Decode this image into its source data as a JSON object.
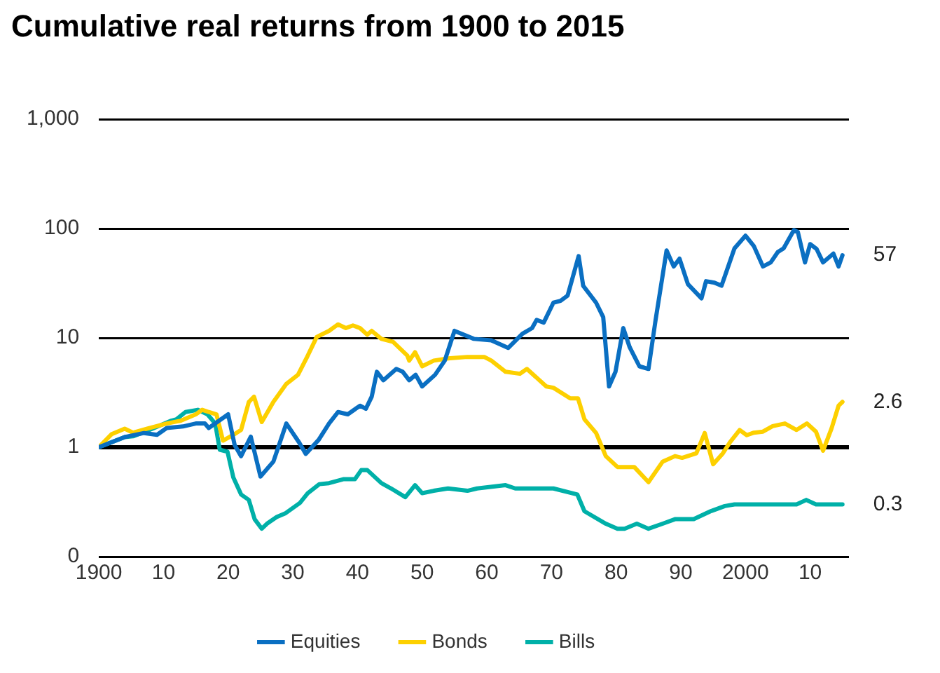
{
  "chart_data": {
    "type": "line",
    "title": "Cumulative real returns from 1900 to 2015",
    "log": "y",
    "grid": "y",
    "legend": "bottom",
    "marker": "none",
    "line_style": "solid",
    "xlim": [
      1900,
      2016
    ],
    "xticks": [
      {
        "value": 1900,
        "label": "1900"
      },
      {
        "value": 1910,
        "label": "10"
      },
      {
        "value": 1920,
        "label": "20"
      },
      {
        "value": 1930,
        "label": "30"
      },
      {
        "value": 1940,
        "label": "40"
      },
      {
        "value": 1950,
        "label": "50"
      },
      {
        "value": 1960,
        "label": "60"
      },
      {
        "value": 1970,
        "label": "70"
      },
      {
        "value": 1980,
        "label": "80"
      },
      {
        "value": 1990,
        "label": "90"
      },
      {
        "value": 2000,
        "label": "2000"
      },
      {
        "value": 2010,
        "label": "10"
      }
    ],
    "ylim": [
      0.1,
      1000
    ],
    "yticks": [
      {
        "value": 0.1,
        "label": "0"
      },
      {
        "value": 1,
        "label": "1"
      },
      {
        "value": 10,
        "label": "10"
      },
      {
        "value": 100,
        "label": "100"
      },
      {
        "value": 1000,
        "label": "1,000"
      }
    ],
    "ref_lines": [
      {
        "axis": "y",
        "value": 1,
        "color": "#000000"
      }
    ],
    "series": [
      {
        "name": "Equities",
        "color": "#0a6fc2",
        "x": [
          1900,
          1904,
          1907,
          1909,
          1910.5,
          1913,
          1915,
          1916.4,
          1917,
          1918,
          1920,
          1921,
          1922,
          1923.5,
          1925,
          1927,
          1929,
          1931,
          1932,
          1934,
          1935.6,
          1937,
          1938.5,
          1940.4,
          1941.3,
          1942.2,
          1943,
          1944,
          1946,
          1947,
          1948,
          1949,
          1950,
          1952,
          1953.5,
          1955,
          1958,
          1960.7,
          1963.3,
          1965.5,
          1967,
          1967.7,
          1968.8,
          1970.3,
          1971.4,
          1972.5,
          1974.2,
          1974.9,
          1976.9,
          1978,
          1978.9,
          1979.9,
          1981.1,
          1982.1,
          1983.6,
          1985,
          1986.1,
          1987.8,
          1988.9,
          1989.8,
          1991.1,
          1993.2,
          1993.9,
          1995.2,
          1996.3,
          1998.3,
          2000,
          2001.3,
          2002.7,
          2003.9,
          2005,
          2005.9,
          2007.5,
          2008.1,
          2009.2,
          2010,
          2011,
          2012,
          2013.6,
          2014.4,
          2015
        ],
        "values": [
          1,
          1.24,
          1.35,
          1.3,
          1.5,
          1.55,
          1.65,
          1.65,
          1.5,
          1.65,
          2,
          1.05,
          0.83,
          1.25,
          0.54,
          0.74,
          1.65,
          1.1,
          0.87,
          1.17,
          1.65,
          2.1,
          2,
          2.4,
          2.25,
          2.9,
          4.9,
          4.1,
          5.2,
          4.9,
          4.1,
          4.6,
          3.6,
          4.6,
          6.2,
          11.6,
          9.8,
          9.5,
          8.1,
          10.9,
          12.3,
          14.6,
          13.8,
          21,
          21.8,
          24.4,
          56,
          30,
          21,
          15.5,
          3.6,
          4.9,
          12.3,
          8.2,
          5.5,
          5.2,
          14.6,
          63,
          45,
          53,
          31,
          23,
          33,
          32,
          30,
          66,
          86,
          69,
          45,
          49,
          61,
          66,
          97,
          93,
          49,
          72,
          65,
          49,
          59,
          45,
          57
        ],
        "value_labels": [
          null,
          null,
          null,
          null,
          null,
          null,
          null,
          null,
          null,
          null,
          null,
          null,
          null,
          null,
          null,
          null,
          null,
          null,
          null,
          null,
          null,
          null,
          null,
          null,
          null,
          null,
          null,
          null,
          null,
          null,
          null,
          null,
          null,
          null,
          null,
          null,
          null,
          null,
          null,
          null,
          null,
          null,
          null,
          null,
          null,
          null,
          null,
          null,
          null,
          null,
          null,
          null,
          null,
          null,
          null,
          null,
          null,
          null,
          null,
          null,
          null,
          null,
          null,
          null,
          null,
          null,
          null,
          null,
          null,
          null,
          null,
          null,
          null,
          null,
          null,
          null,
          null,
          null,
          null,
          null,
          "57"
        ]
      },
      {
        "name": "Bonds",
        "color": "#fdd000",
        "x": [
          1900,
          1902,
          1904,
          1905.3,
          1907.5,
          1910.5,
          1912.7,
          1915,
          1916,
          1917,
          1918.2,
          1919.2,
          1921,
          1922,
          1923.2,
          1924,
          1925.2,
          1927,
          1929,
          1930.8,
          1932.1,
          1933.7,
          1935.6,
          1937,
          1938.2,
          1939.3,
          1940.4,
          1941.5,
          1942.2,
          1943.7,
          1945.5,
          1947.7,
          1948,
          1948.9,
          1950,
          1951.8,
          1954,
          1957,
          1959.6,
          1960.7,
          1962.9,
          1965.1,
          1966.2,
          1969.2,
          1970.3,
          1972.9,
          1974.1,
          1975.1,
          1976.9,
          1978.4,
          1980.2,
          1982.8,
          1985,
          1987.2,
          1989.1,
          1990.2,
          1992.4,
          1993.7,
          1995,
          1996.5,
          1997.6,
          1999.1,
          2000.2,
          2001.3,
          2002.7,
          2004.2,
          2006.1,
          2007.9,
          2009.5,
          2010.9,
          2012,
          2013.3,
          2014.4,
          2015
        ],
        "values": [
          1,
          1.32,
          1.48,
          1.36,
          1.48,
          1.65,
          1.75,
          2,
          2.2,
          2.1,
          2,
          1.15,
          1.32,
          1.44,
          2.6,
          2.9,
          1.7,
          2.6,
          3.8,
          4.6,
          6.5,
          10.2,
          11.6,
          13.3,
          12.3,
          13,
          12.3,
          10.7,
          11.6,
          9.8,
          9.2,
          6.9,
          6.2,
          7.4,
          5.5,
          6.2,
          6.5,
          6.7,
          6.7,
          6.2,
          4.9,
          4.7,
          5.2,
          3.6,
          3.5,
          2.8,
          2.8,
          1.8,
          1.35,
          0.83,
          0.66,
          0.66,
          0.48,
          0.74,
          0.83,
          0.8,
          0.88,
          1.35,
          0.7,
          0.88,
          1.11,
          1.44,
          1.29,
          1.36,
          1.39,
          1.56,
          1.65,
          1.44,
          1.65,
          1.39,
          0.93,
          1.48,
          2.4,
          2.6
        ],
        "value_labels": [
          null,
          null,
          null,
          null,
          null,
          null,
          null,
          null,
          null,
          null,
          null,
          null,
          null,
          null,
          null,
          null,
          null,
          null,
          null,
          null,
          null,
          null,
          null,
          null,
          null,
          null,
          null,
          null,
          null,
          null,
          null,
          null,
          null,
          null,
          null,
          null,
          null,
          null,
          null,
          null,
          null,
          null,
          null,
          null,
          null,
          null,
          null,
          null,
          null,
          null,
          null,
          null,
          null,
          null,
          null,
          null,
          null,
          null,
          null,
          null,
          null,
          null,
          null,
          null,
          null,
          null,
          null,
          null,
          null,
          null,
          null,
          null,
          null,
          "2.6"
        ]
      },
      {
        "name": "Bills",
        "color": "#00b0a8",
        "x": [
          1900,
          1904,
          1905.3,
          1908.3,
          1911.2,
          1912,
          1913.4,
          1915.3,
          1916.8,
          1918,
          1918.7,
          1919.9,
          1920.8,
          1922,
          1923.2,
          1924.1,
          1925.2,
          1926,
          1927.5,
          1928.9,
          1931.1,
          1932.3,
          1934.1,
          1935.6,
          1937.8,
          1939.6,
          1940.6,
          1941.5,
          1943.7,
          1945.2,
          1947.4,
          1948.9,
          1950,
          1951.8,
          1954,
          1957,
          1958.5,
          1962.9,
          1964.4,
          1970.3,
          1974,
          1975.1,
          1978.4,
          1980.2,
          1981.3,
          1983.2,
          1985,
          1987.2,
          1989.1,
          1992,
          1994.6,
          1996.8,
          1998.3,
          2005,
          2007.9,
          2009.4,
          2010.9,
          2015
        ],
        "values": [
          1,
          1.24,
          1.26,
          1.48,
          1.75,
          1.8,
          2.1,
          2.2,
          2,
          1.65,
          0.95,
          0.91,
          0.53,
          0.37,
          0.33,
          0.22,
          0.18,
          0.2,
          0.23,
          0.25,
          0.31,
          0.38,
          0.46,
          0.47,
          0.51,
          0.51,
          0.62,
          0.62,
          0.47,
          0.42,
          0.35,
          0.45,
          0.38,
          0.4,
          0.42,
          0.4,
          0.42,
          0.45,
          0.42,
          0.42,
          0.37,
          0.26,
          0.2,
          0.18,
          0.18,
          0.2,
          0.18,
          0.2,
          0.22,
          0.22,
          0.26,
          0.29,
          0.3,
          0.3,
          0.3,
          0.33,
          0.3,
          0.3
        ],
        "value_labels": [
          null,
          null,
          null,
          null,
          null,
          null,
          null,
          null,
          null,
          null,
          null,
          null,
          null,
          null,
          null,
          null,
          null,
          null,
          null,
          null,
          null,
          null,
          null,
          null,
          null,
          null,
          null,
          null,
          null,
          null,
          null,
          null,
          null,
          null,
          null,
          null,
          null,
          null,
          null,
          null,
          null,
          null,
          null,
          null,
          null,
          null,
          null,
          null,
          null,
          null,
          null,
          null,
          null,
          null,
          null,
          null,
          null,
          "0.3"
        ]
      }
    ]
  }
}
